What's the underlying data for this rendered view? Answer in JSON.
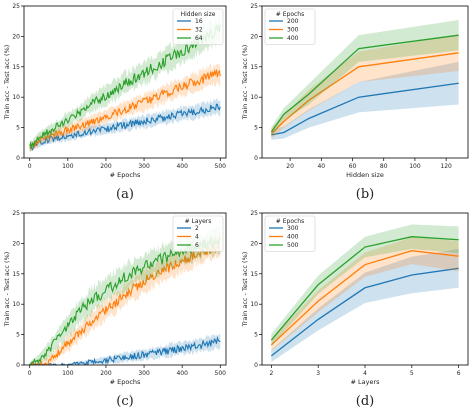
{
  "colors": {
    "blue": "#1f77b4",
    "orange": "#ff7f0e",
    "green": "#2ca02c"
  },
  "chart_data": [
    {
      "type": "line",
      "caption": "(a)",
      "xlabel": "# Epochs",
      "ylabel": "Train acc - Test acc (%)",
      "xlim": [
        -15,
        515
      ],
      "ylim": [
        0,
        25
      ],
      "xticks": [
        0,
        100,
        200,
        300,
        400,
        500
      ],
      "yticks": [
        0,
        5,
        10,
        15,
        20,
        25
      ],
      "legend_title": "Hidden size",
      "legend_position": "top-right",
      "grid": false,
      "noisy": true,
      "x": [
        0,
        25,
        50,
        75,
        100,
        125,
        150,
        175,
        200,
        225,
        250,
        275,
        300,
        325,
        350,
        375,
        400,
        425,
        450,
        475,
        500
      ],
      "series": [
        {
          "name": "16",
          "color": "blue",
          "values": [
            1.5,
            2.5,
            3.0,
            3.3,
            3.6,
            3.9,
            4.2,
            4.5,
            4.8,
            5.1,
            5.4,
            5.7,
            6.0,
            6.3,
            6.6,
            6.9,
            7.2,
            7.5,
            7.8,
            8.1,
            8.4
          ],
          "band": [
            0.6,
            0.6,
            0.6,
            0.7,
            0.7,
            0.7,
            0.8,
            0.8,
            0.8,
            0.9,
            0.9,
            0.9,
            1.0,
            1.0,
            1.0,
            1.0,
            1.1,
            1.1,
            1.1,
            1.1,
            1.2
          ]
        },
        {
          "name": "32",
          "color": "orange",
          "values": [
            1.5,
            3.0,
            3.6,
            4.1,
            4.6,
            5.1,
            5.6,
            6.2,
            6.8,
            7.4,
            8.0,
            8.6,
            9.2,
            9.8,
            10.5,
            11.1,
            11.7,
            12.3,
            12.9,
            13.5,
            14.0
          ],
          "band": [
            0.6,
            0.7,
            0.8,
            0.8,
            0.9,
            0.9,
            1.0,
            1.0,
            1.1,
            1.1,
            1.2,
            1.2,
            1.3,
            1.3,
            1.4,
            1.4,
            1.5,
            1.5,
            1.6,
            1.6,
            1.7
          ]
        },
        {
          "name": "64",
          "color": "green",
          "values": [
            1.8,
            3.5,
            4.4,
            5.3,
            6.3,
            7.3,
            8.3,
            9.3,
            10.3,
            11.3,
            12.2,
            13.1,
            14.0,
            14.9,
            15.8,
            16.7,
            17.6,
            18.5,
            19.4,
            20.3,
            21.3
          ],
          "band": [
            0.7,
            0.8,
            0.9,
            1.0,
            1.1,
            1.2,
            1.3,
            1.4,
            1.5,
            1.6,
            1.7,
            1.7,
            1.8,
            1.8,
            1.9,
            1.9,
            2.0,
            2.0,
            2.0,
            2.0,
            2.0
          ]
        }
      ]
    },
    {
      "type": "line",
      "caption": "(b)",
      "xlabel": "Hidden size",
      "ylabel": "Train acc - Test acc (%)",
      "xlim": [
        2,
        134
      ],
      "ylim": [
        0,
        25
      ],
      "xticks": [
        20,
        40,
        60,
        80,
        100,
        120
      ],
      "yticks": [
        0,
        5,
        10,
        15,
        20,
        25
      ],
      "legend_title": "# Epochs",
      "legend_position": "top-left",
      "grid": false,
      "noisy": false,
      "x": [
        8,
        16,
        32,
        64,
        128
      ],
      "series": [
        {
          "name": "200",
          "color": "blue",
          "values": [
            3.8,
            4.2,
            6.5,
            10.0,
            12.3
          ],
          "band": [
            0.8,
            1.0,
            1.5,
            2.5,
            3.5
          ]
        },
        {
          "name": "300",
          "color": "orange",
          "values": [
            4.0,
            6.0,
            9.5,
            15.0,
            17.3
          ],
          "band": [
            0.8,
            1.0,
            1.7,
            2.5,
            3.0
          ]
        },
        {
          "name": "400",
          "color": "green",
          "values": [
            4.3,
            7.2,
            10.5,
            18.0,
            20.2
          ],
          "band": [
            0.8,
            1.0,
            1.7,
            2.2,
            2.5
          ]
        }
      ]
    },
    {
      "type": "line",
      "caption": "(c)",
      "xlabel": "# Epochs",
      "ylabel": "Train acc - Test acc (%)",
      "xlim": [
        -15,
        515
      ],
      "ylim": [
        0,
        25
      ],
      "xticks": [
        0,
        100,
        200,
        300,
        400,
        500
      ],
      "yticks": [
        0,
        5,
        10,
        15,
        20,
        25
      ],
      "legend_title": "# Layers",
      "legend_position": "top-right",
      "grid": false,
      "noisy": true,
      "x": [
        0,
        25,
        50,
        75,
        100,
        125,
        150,
        175,
        200,
        225,
        250,
        275,
        300,
        325,
        350,
        375,
        400,
        425,
        450,
        475,
        500
      ],
      "series": [
        {
          "name": "2",
          "color": "blue",
          "values": [
            0.0,
            0.0,
            0.0,
            0.0,
            0.0,
            0.2,
            0.4,
            0.6,
            0.8,
            1.0,
            1.3,
            1.5,
            1.7,
            1.9,
            2.2,
            2.5,
            2.8,
            3.0,
            3.3,
            3.6,
            3.9
          ],
          "band": [
            0.0,
            0.0,
            0.0,
            0.0,
            0.1,
            0.3,
            0.4,
            0.5,
            0.6,
            0.7,
            0.7,
            0.8,
            0.8,
            0.9,
            0.9,
            1.0,
            1.0,
            1.0,
            1.1,
            1.1,
            1.1
          ]
        },
        {
          "name": "4",
          "color": "orange",
          "values": [
            0.0,
            0.0,
            0.5,
            2.0,
            3.5,
            5.0,
            6.5,
            7.8,
            9.1,
            10.3,
            11.5,
            12.6,
            13.7,
            14.7,
            15.6,
            16.4,
            17.2,
            17.9,
            18.6,
            19.2,
            19.8
          ],
          "band": [
            0.3,
            0.5,
            0.8,
            1.0,
            1.2,
            1.3,
            1.4,
            1.5,
            1.6,
            1.6,
            1.7,
            1.7,
            1.8,
            1.8,
            1.8,
            1.8,
            1.8,
            1.8,
            1.8,
            1.8,
            1.8
          ]
        },
        {
          "name": "6",
          "color": "green",
          "values": [
            0.0,
            1.0,
            2.5,
            4.5,
            6.5,
            8.3,
            9.9,
            11.2,
            12.3,
            13.4,
            14.4,
            15.3,
            16.1,
            16.8,
            17.5,
            18.1,
            18.7,
            19.2,
            19.7,
            20.1,
            20.5
          ],
          "band": [
            0.4,
            0.8,
            1.2,
            1.5,
            1.8,
            1.9,
            2.0,
            2.0,
            2.0,
            2.0,
            2.0,
            2.0,
            2.0,
            2.0,
            2.0,
            2.0,
            2.0,
            2.0,
            2.0,
            2.0,
            2.0
          ]
        }
      ]
    },
    {
      "type": "line",
      "caption": "(d)",
      "xlabel": "# Layers",
      "ylabel": "Train acc - Test acc (%)",
      "xlim": [
        1.8,
        6.2
      ],
      "ylim": [
        0,
        25
      ],
      "xticks": [
        2,
        3,
        4,
        5,
        6
      ],
      "yticks": [
        0,
        5,
        10,
        15,
        20,
        25
      ],
      "legend_title": "# Epochs",
      "legend_position": "top-left",
      "grid": false,
      "noisy": false,
      "x": [
        2,
        3,
        4,
        5,
        6
      ],
      "series": [
        {
          "name": "300",
          "color": "blue",
          "values": [
            1.5,
            7.5,
            12.7,
            14.8,
            15.9
          ],
          "band": [
            1.0,
            1.8,
            2.5,
            3.0,
            3.2
          ]
        },
        {
          "name": "400",
          "color": "orange",
          "values": [
            3.3,
            10.5,
            16.5,
            18.8,
            17.9
          ],
          "band": [
            1.0,
            1.8,
            2.0,
            2.2,
            2.5
          ]
        },
        {
          "name": "500",
          "color": "green",
          "values": [
            4.1,
            13.2,
            19.4,
            21.1,
            20.6
          ],
          "band": [
            1.0,
            1.5,
            1.7,
            2.0,
            2.2
          ]
        }
      ]
    }
  ]
}
